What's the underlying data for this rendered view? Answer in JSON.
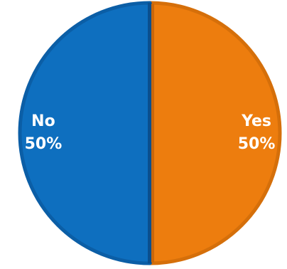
{
  "chart_data": {
    "type": "pie",
    "title": "",
    "slices": [
      {
        "label": "Yes",
        "value": 50,
        "percent_label": "50%",
        "color": "#ED7D0E",
        "stroke": "#D56F0A"
      },
      {
        "label": "No",
        "value": 50,
        "percent_label": "50%",
        "color": "#0E6FBF",
        "stroke": "#0B5EA6"
      }
    ],
    "legend": "none",
    "data_labels": "inside"
  }
}
